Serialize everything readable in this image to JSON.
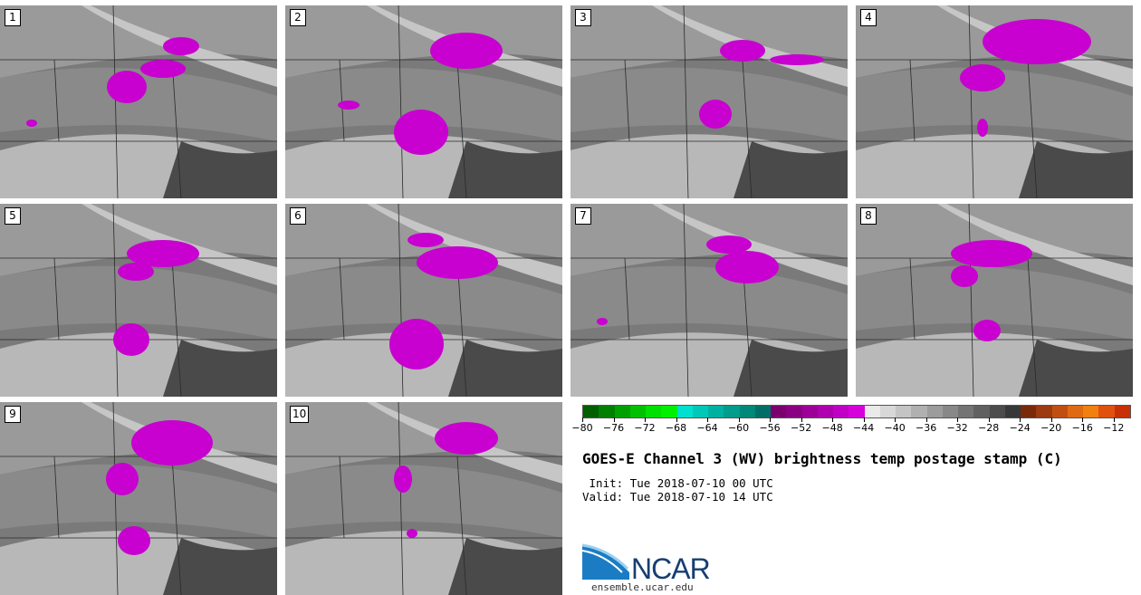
{
  "panels": [
    {
      "label": "1"
    },
    {
      "label": "2"
    },
    {
      "label": "3"
    },
    {
      "label": "4"
    },
    {
      "label": "5"
    },
    {
      "label": "6"
    },
    {
      "label": "7"
    },
    {
      "label": "8"
    },
    {
      "label": "9"
    },
    {
      "label": "10"
    }
  ],
  "colorbar": {
    "ticks": [
      "−80",
      "−76",
      "−72",
      "−68",
      "−64",
      "−60",
      "−56",
      "−52",
      "−48",
      "−44",
      "−40",
      "−36",
      "−32",
      "−28",
      "−24",
      "−20",
      "−16",
      "−12"
    ],
    "colors": [
      "#005f00",
      "#007f00",
      "#00a000",
      "#00c000",
      "#00df00",
      "#00f000",
      "#00dfd0",
      "#00c8b8",
      "#00b0a0",
      "#009c8c",
      "#008878",
      "#006e66",
      "#7a006e",
      "#8a0082",
      "#9c0098",
      "#ae00ae",
      "#c000c4",
      "#d600dc",
      "#eaeaea",
      "#d8d8d8",
      "#c4c4c4",
      "#b0b0b0",
      "#9c9c9c",
      "#888888",
      "#747474",
      "#606060",
      "#4c4c4c",
      "#383838",
      "#7a2a0a",
      "#9c3a10",
      "#c04e12",
      "#e06a12",
      "#f08010",
      "#e05010",
      "#c83008"
    ]
  },
  "title": "GOES-E Channel 3 (WV) brightness temp postage stamp (C)",
  "init_line": " Init: Tue 2018-07-10 00 UTC",
  "valid_line": "Valid: Tue 2018-07-10 14 UTC",
  "logo_text": "NCAR",
  "url": "ensemble.ucar.edu"
}
